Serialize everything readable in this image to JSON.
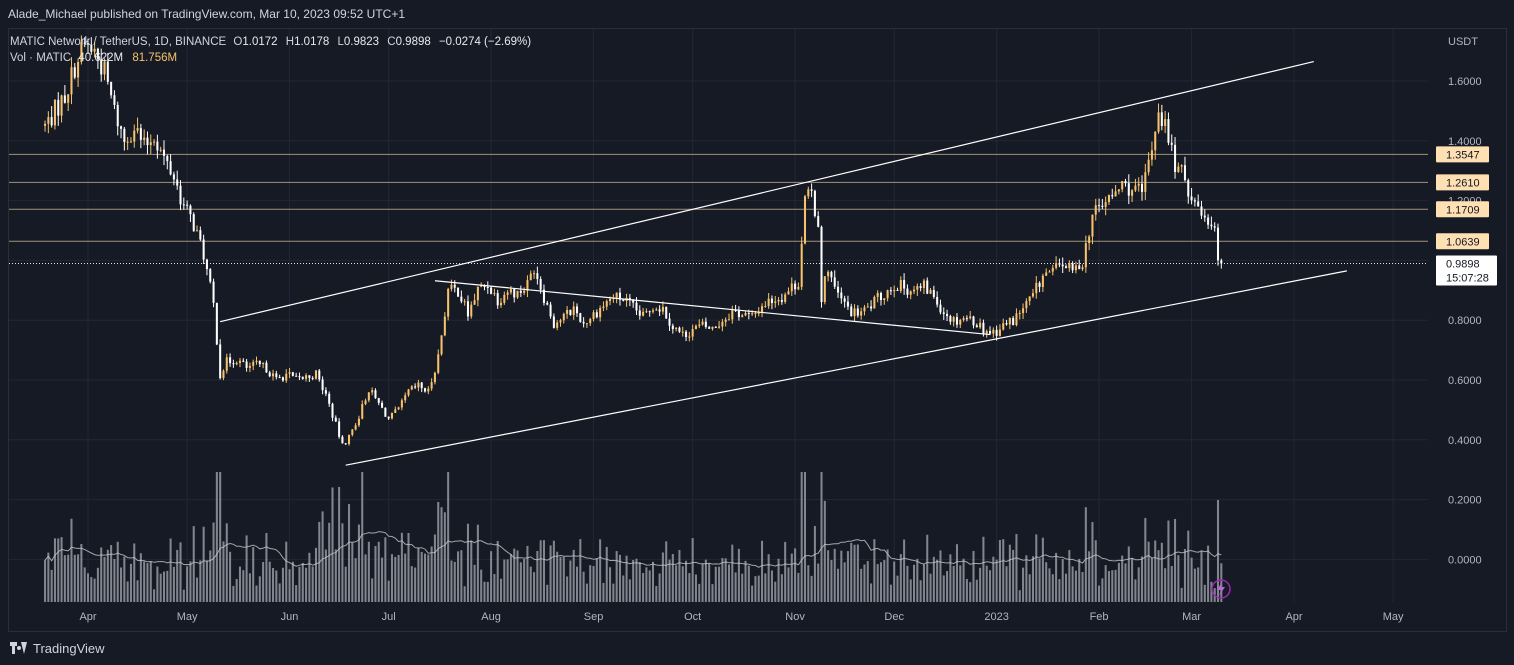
{
  "header": {
    "publisher_line": "Alade_Michael published on TradingView.com, Mar 10, 2023 09:52 UTC+1"
  },
  "legend": {
    "symbol": "MATIC Network / TetherUS, 1D, BINANCE",
    "open_key": "O",
    "open": "1.0172",
    "high_key": "H",
    "high": "1.0178",
    "low_key": "L",
    "low": "0.9823",
    "close_key": "C",
    "close": "0.9898",
    "change": "−0.0274 (−2.69%)",
    "volume_label": "Vol · MATIC",
    "volume_value": "40.622M",
    "volume_ma": "81.756M"
  },
  "footer": {
    "brand": "TradingView"
  },
  "chart_data": {
    "type": "candlestick",
    "title": "MATIC Network / TetherUS, 1D, BINANCE",
    "y_axis_label": "USDT",
    "ylim": [
      -0.1,
      1.76
    ],
    "y_ticks": [
      "1.6000",
      "1.4000",
      "1.2000",
      "1.0000",
      "0.8000",
      "0.6000",
      "0.4000",
      "0.2000",
      "0.0000"
    ],
    "y_tick_values": [
      1.6,
      1.4,
      1.2,
      1.0,
      0.8,
      0.6,
      0.4,
      0.2,
      0.0
    ],
    "x_tick_labels": [
      "Apr",
      "May",
      "Jun",
      "Jul",
      "Aug",
      "Sep",
      "Oct",
      "Nov",
      "Dec",
      "2023",
      "Feb",
      "Mar",
      "Apr",
      "May"
    ],
    "x_tick_dates": [
      "2022-04-01",
      "2022-05-01",
      "2022-06-01",
      "2022-07-01",
      "2022-08-01",
      "2022-09-01",
      "2022-10-01",
      "2022-11-01",
      "2022-12-01",
      "2023-01-01",
      "2023-02-01",
      "2023-03-01",
      "2023-04-01",
      "2023-05-01"
    ],
    "x_range": [
      "2022-03-19",
      "2023-05-15"
    ],
    "price_path": [
      [
        "2022-03-19",
        1.45
      ],
      [
        "2022-03-22",
        1.5
      ],
      [
        "2022-03-25",
        1.55
      ],
      [
        "2022-03-28",
        1.65
      ],
      [
        "2022-03-31",
        1.72
      ],
      [
        "2022-04-03",
        1.7
      ],
      [
        "2022-04-06",
        1.63
      ],
      [
        "2022-04-09",
        1.5
      ],
      [
        "2022-04-12",
        1.4
      ],
      [
        "2022-04-15",
        1.45
      ],
      [
        "2022-04-18",
        1.38
      ],
      [
        "2022-04-21",
        1.42
      ],
      [
        "2022-04-24",
        1.34
      ],
      [
        "2022-04-27",
        1.28
      ],
      [
        "2022-04-30",
        1.18
      ],
      [
        "2022-05-03",
        1.12
      ],
      [
        "2022-05-06",
        1.02
      ],
      [
        "2022-05-09",
        0.85
      ],
      [
        "2022-05-11",
        0.62
      ],
      [
        "2022-05-13",
        0.66
      ],
      [
        "2022-05-16",
        0.67
      ],
      [
        "2022-05-19",
        0.64
      ],
      [
        "2022-05-22",
        0.65
      ],
      [
        "2022-05-25",
        0.64
      ],
      [
        "2022-05-28",
        0.6
      ],
      [
        "2022-05-31",
        0.62
      ],
      [
        "2022-06-03",
        0.6
      ],
      [
        "2022-06-06",
        0.61
      ],
      [
        "2022-06-09",
        0.62
      ],
      [
        "2022-06-12",
        0.55
      ],
      [
        "2022-06-15",
        0.45
      ],
      [
        "2022-06-17",
        0.38
      ],
      [
        "2022-06-19",
        0.41
      ],
      [
        "2022-06-22",
        0.48
      ],
      [
        "2022-06-25",
        0.57
      ],
      [
        "2022-06-28",
        0.52
      ],
      [
        "2022-07-01",
        0.47
      ],
      [
        "2022-07-04",
        0.5
      ],
      [
        "2022-07-07",
        0.56
      ],
      [
        "2022-07-10",
        0.58
      ],
      [
        "2022-07-13",
        0.56
      ],
      [
        "2022-07-16",
        0.68
      ],
      [
        "2022-07-19",
        0.9
      ],
      [
        "2022-07-22",
        0.9
      ],
      [
        "2022-07-25",
        0.82
      ],
      [
        "2022-07-28",
        0.9
      ],
      [
        "2022-07-31",
        0.92
      ],
      [
        "2022-08-03",
        0.87
      ],
      [
        "2022-08-06",
        0.9
      ],
      [
        "2022-08-09",
        0.89
      ],
      [
        "2022-08-12",
        0.92
      ],
      [
        "2022-08-14",
        0.98
      ],
      [
        "2022-08-17",
        0.88
      ],
      [
        "2022-08-20",
        0.79
      ],
      [
        "2022-08-23",
        0.81
      ],
      [
        "2022-08-26",
        0.84
      ],
      [
        "2022-08-29",
        0.79
      ],
      [
        "2022-09-01",
        0.82
      ],
      [
        "2022-09-04",
        0.85
      ],
      [
        "2022-09-07",
        0.88
      ],
      [
        "2022-09-10",
        0.87
      ],
      [
        "2022-09-13",
        0.84
      ],
      [
        "2022-09-16",
        0.81
      ],
      [
        "2022-09-19",
        0.85
      ],
      [
        "2022-09-22",
        0.84
      ],
      [
        "2022-09-25",
        0.78
      ],
      [
        "2022-09-28",
        0.75
      ],
      [
        "2022-10-01",
        0.77
      ],
      [
        "2022-10-04",
        0.78
      ],
      [
        "2022-10-07",
        0.77
      ],
      [
        "2022-10-10",
        0.8
      ],
      [
        "2022-10-13",
        0.83
      ],
      [
        "2022-10-16",
        0.82
      ],
      [
        "2022-10-19",
        0.81
      ],
      [
        "2022-10-22",
        0.85
      ],
      [
        "2022-10-25",
        0.87
      ],
      [
        "2022-10-28",
        0.88
      ],
      [
        "2022-10-31",
        0.91
      ],
      [
        "2022-11-02",
        0.93
      ],
      [
        "2022-11-04",
        1.2
      ],
      [
        "2022-11-06",
        1.22
      ],
      [
        "2022-11-08",
        1.12
      ],
      [
        "2022-11-09",
        0.88
      ],
      [
        "2022-11-11",
        0.98
      ],
      [
        "2022-11-13",
        0.9
      ],
      [
        "2022-11-16",
        0.85
      ],
      [
        "2022-11-19",
        0.82
      ],
      [
        "2022-11-22",
        0.83
      ],
      [
        "2022-11-25",
        0.86
      ],
      [
        "2022-11-28",
        0.89
      ],
      [
        "2022-12-01",
        0.92
      ],
      [
        "2022-12-04",
        0.91
      ],
      [
        "2022-12-07",
        0.9
      ],
      [
        "2022-12-10",
        0.91
      ],
      [
        "2022-12-13",
        0.88
      ],
      [
        "2022-12-16",
        0.83
      ],
      [
        "2022-12-19",
        0.8
      ],
      [
        "2022-12-22",
        0.81
      ],
      [
        "2022-12-25",
        0.8
      ],
      [
        "2022-12-28",
        0.77
      ],
      [
        "2022-12-31",
        0.76
      ],
      [
        "2023-01-03",
        0.78
      ],
      [
        "2023-01-06",
        0.8
      ],
      [
        "2023-01-09",
        0.84
      ],
      [
        "2023-01-12",
        0.88
      ],
      [
        "2023-01-15",
        0.95
      ],
      [
        "2023-01-18",
        0.96
      ],
      [
        "2023-01-21",
        0.99
      ],
      [
        "2023-01-24",
        0.96
      ],
      [
        "2023-01-27",
        1.0
      ],
      [
        "2023-01-30",
        1.15
      ],
      [
        "2023-02-02",
        1.19
      ],
      [
        "2023-02-05",
        1.21
      ],
      [
        "2023-02-08",
        1.25
      ],
      [
        "2023-02-11",
        1.24
      ],
      [
        "2023-02-14",
        1.22
      ],
      [
        "2023-02-17",
        1.38
      ],
      [
        "2023-02-19",
        1.51
      ],
      [
        "2023-02-21",
        1.45
      ],
      [
        "2023-02-24",
        1.32
      ],
      [
        "2023-02-27",
        1.27
      ],
      [
        "2023-03-02",
        1.19
      ],
      [
        "2023-03-05",
        1.15
      ],
      [
        "2023-03-08",
        1.12
      ],
      [
        "2023-03-09",
        1.02
      ],
      [
        "2023-03-10",
        0.9898
      ]
    ],
    "horizontal_levels": [
      1.3547,
      1.261,
      1.1709,
      1.0639
    ],
    "horizontal_level_labels": [
      "1.3547",
      "1.2610",
      "1.1709",
      "1.0639"
    ],
    "last_price": 0.9898,
    "last_price_label": "0.9898",
    "countdown_label": "15:07:28",
    "channel_upper": [
      [
        "2022-05-11",
        0.795
      ],
      [
        "2023-04-07",
        1.665
      ]
    ],
    "channel_lower": [
      [
        "2022-06-18",
        0.315
      ],
      [
        "2023-04-17",
        0.965
      ]
    ],
    "channel_mid": [
      [
        "2022-07-15",
        0.932
      ],
      [
        "2022-12-30",
        0.752
      ]
    ],
    "volume_series": {
      "name": "Vol · MATIC",
      "last_value": "40.622M",
      "ma_value": "81.756M"
    },
    "colors": {
      "up": "#f7c26b",
      "down": "#ffffff",
      "volume": "#9598a1",
      "volume_ma": "#c8c8c8",
      "level_line": "#d9c6a0",
      "level_label_bg": "#ffe0b2",
      "background": "#161a25",
      "grid": "#232735"
    },
    "grid": true
  }
}
